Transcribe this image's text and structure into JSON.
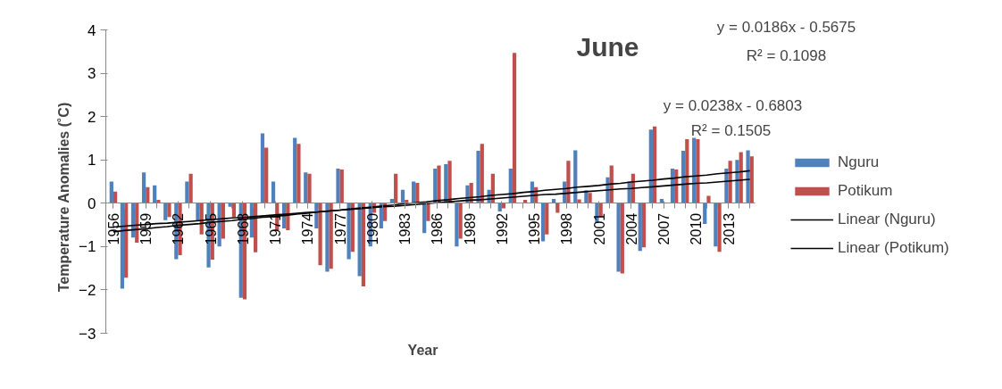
{
  "chart_data": {
    "type": "bar",
    "title": "June",
    "xlabel": "Year",
    "ylabel": "Temperature Anomalies  (˚C)",
    "categories": [
      "1956",
      null,
      null,
      "1959",
      null,
      null,
      "1962",
      null,
      null,
      "1965",
      null,
      null,
      "1968",
      null,
      null,
      "1971",
      null,
      null,
      "1974",
      null,
      null,
      "1977",
      null,
      null,
      "1980",
      null,
      null,
      "1983",
      null,
      null,
      "1986",
      null,
      null,
      "1989",
      null,
      null,
      "1992",
      null,
      null,
      "1995",
      null,
      null,
      "1998",
      null,
      null,
      "2001",
      null,
      null,
      "2004",
      null,
      null,
      "2007",
      null,
      null,
      "2010",
      null,
      null,
      "2013",
      null,
      null
    ],
    "series": [
      {
        "name": "Nguru",
        "color": "#4f81bd",
        "values": [
          0.5,
          -1.97,
          -0.79,
          0.71,
          0.41,
          -0.39,
          -1.29,
          0.5,
          -0.41,
          -1.48,
          -1.0,
          -0.08,
          -2.18,
          -0.79,
          1.61,
          0.5,
          -0.58,
          1.51,
          0.71,
          -0.58,
          -1.58,
          0.8,
          -1.29,
          -1.68,
          -1.0,
          -0.58,
          0.1,
          0.31,
          0.5,
          -0.69,
          0.8,
          0.9,
          -1.0,
          0.41,
          1.21,
          0.31,
          -0.19,
          0.8,
          0.0,
          0.5,
          -0.88,
          0.1,
          0.5,
          1.22,
          0.3,
          -0.45,
          0.6,
          -1.58,
          0.5,
          -1.1,
          1.7,
          0.1,
          0.8,
          1.21,
          1.51,
          -0.48,
          -1.0,
          0.8,
          1.0,
          1.22
        ]
      },
      {
        "name": "Potikum",
        "color": "#c0504d",
        "values": [
          0.27,
          -1.72,
          -0.91,
          0.37,
          0.08,
          -0.32,
          -1.2,
          0.68,
          -0.72,
          -1.3,
          -0.82,
          -0.32,
          -2.22,
          -1.13,
          1.28,
          -0.62,
          -0.62,
          1.37,
          0.68,
          -1.43,
          -1.51,
          0.78,
          -1.12,
          -1.92,
          -0.22,
          -0.41,
          0.68,
          0.08,
          0.47,
          -0.41,
          0.87,
          0.98,
          -0.82,
          0.47,
          1.37,
          0.68,
          -0.12,
          3.47,
          0.08,
          0.37,
          -0.72,
          -0.22,
          0.98,
          0.09,
          0.24,
          -0.32,
          0.87,
          -1.62,
          0.68,
          -1.02,
          1.77,
          0.0,
          0.78,
          1.48,
          1.48,
          0.17,
          -1.12,
          0.98,
          1.18,
          1.08
        ]
      },
      {
        "name": "Linear (Nguru)",
        "type": "line",
        "color": "#000000",
        "values": [
          -0.66,
          -0.63,
          -0.61,
          -0.59,
          -0.56,
          -0.54,
          -0.51,
          -0.49,
          -0.47,
          -0.44,
          -0.42,
          -0.4,
          -0.37,
          -0.35,
          -0.32,
          -0.3,
          -0.28,
          -0.25,
          -0.23,
          -0.2,
          -0.18,
          -0.16,
          -0.13,
          -0.11,
          -0.09,
          -0.06,
          -0.04,
          -0.01,
          0.01,
          0.03,
          0.06,
          0.08,
          0.11,
          0.13,
          0.15,
          0.18,
          0.2,
          0.22,
          0.25,
          0.27,
          0.3,
          0.32,
          0.34,
          0.37,
          0.39,
          0.41,
          0.44,
          0.46,
          0.49,
          0.51,
          0.53,
          0.56,
          0.58,
          0.61,
          0.63,
          0.65,
          0.68,
          0.7,
          0.72,
          0.75
        ]
      },
      {
        "name": "Linear (Potikum)",
        "type": "line",
        "color": "#000000",
        "values": [
          -0.55,
          -0.53,
          -0.51,
          -0.49,
          -0.47,
          -0.46,
          -0.44,
          -0.42,
          -0.4,
          -0.38,
          -0.36,
          -0.34,
          -0.33,
          -0.31,
          -0.29,
          -0.27,
          -0.25,
          -0.23,
          -0.21,
          -0.2,
          -0.18,
          -0.16,
          -0.14,
          -0.12,
          -0.1,
          -0.08,
          -0.07,
          -0.05,
          -0.03,
          -0.01,
          0.01,
          0.03,
          0.05,
          0.07,
          0.08,
          0.1,
          0.12,
          0.14,
          0.16,
          0.18,
          0.2,
          0.21,
          0.23,
          0.25,
          0.27,
          0.29,
          0.31,
          0.33,
          0.34,
          0.36,
          0.38,
          0.4,
          0.42,
          0.44,
          0.46,
          0.47,
          0.49,
          0.51,
          0.53,
          0.55
        ]
      }
    ],
    "annotations": [
      "y = 0.0186x - 0.5675",
      "R² = 0.1098",
      "y = 0.0238x - 0.6803",
      "R² = 0.1505"
    ],
    "ylim": [
      -3,
      4
    ],
    "yticks": [
      -3,
      -2,
      -1,
      0,
      1,
      2,
      3,
      4
    ],
    "grid": false,
    "legend": "right"
  }
}
